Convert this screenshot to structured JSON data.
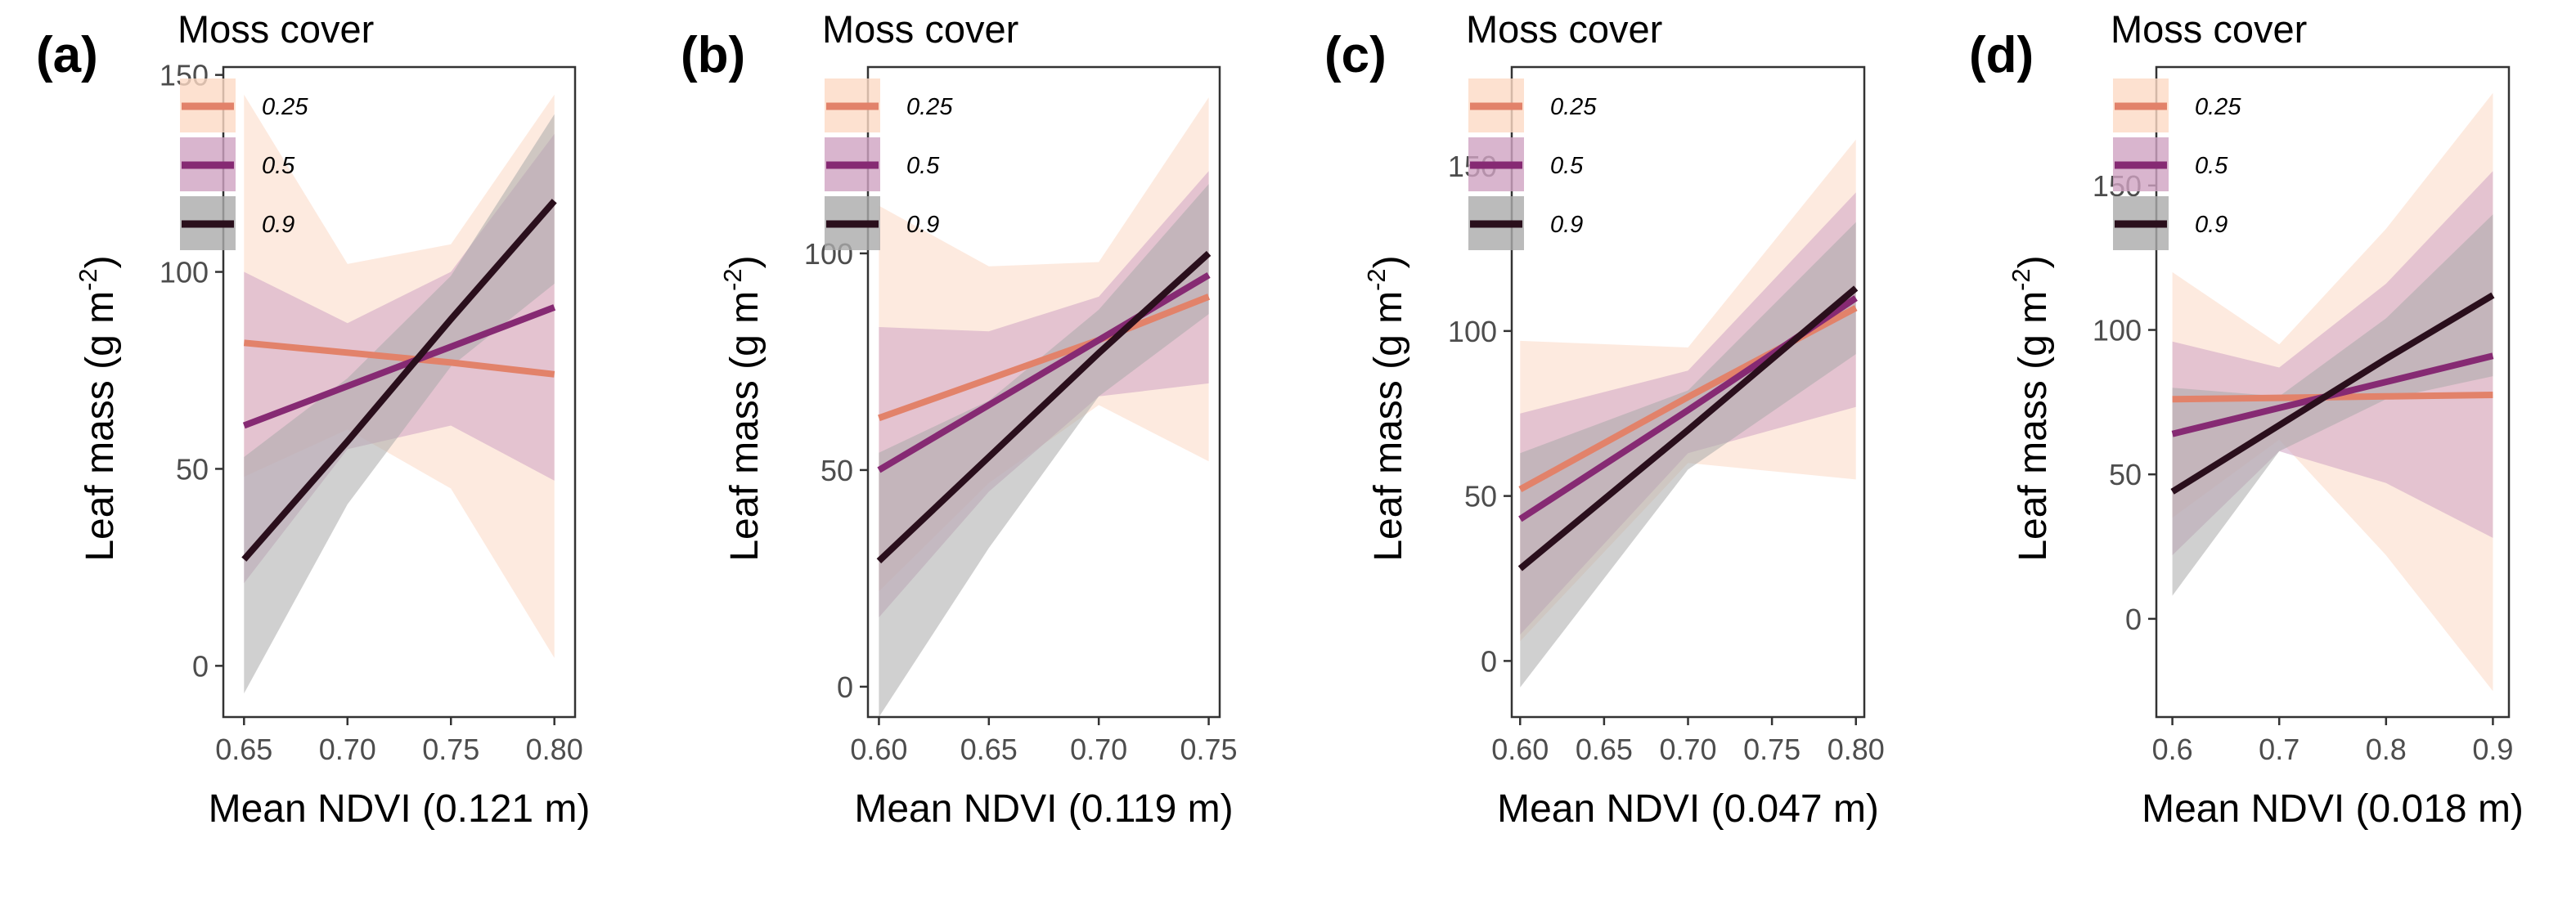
{
  "colors": {
    "0.25": {
      "line": "#e2826a",
      "ribbon": "#fcd9c4"
    },
    "0.5": {
      "line": "#862a73",
      "ribbon": "#cfa2c2"
    },
    "0.9": {
      "line": "#2a0f1c",
      "ribbon": "#aaaaaa"
    }
  },
  "chart_data": [
    {
      "type": "line",
      "panel_label": "(a)",
      "legend_title": "Moss cover",
      "legend_entries": [
        "0.25",
        "0.5",
        "0.9"
      ],
      "xlabel": "Mean NDVI (0.121 m)",
      "ylabel": "Leaf mass (g m",
      "ylabel_sup": "-2",
      "ylabel_close": ")",
      "xlim": [
        0.64,
        0.81
      ],
      "ylim": [
        -13,
        152
      ],
      "x_ticks": [
        0.65,
        0.7,
        0.75,
        0.8
      ],
      "x_tick_labels": [
        "0.65",
        "0.70",
        "0.75",
        "0.80"
      ],
      "y_ticks": [
        0,
        50,
        100,
        150
      ],
      "y_tick_labels": [
        "0",
        "50",
        "100",
        "150"
      ],
      "x": [
        0.65,
        0.7,
        0.75,
        0.8
      ],
      "series": [
        {
          "name": "0.25",
          "values": [
            82,
            79.5,
            77,
            74
          ],
          "lower": [
            48,
            60,
            45,
            2
          ],
          "upper": [
            145,
            102,
            107,
            145
          ]
        },
        {
          "name": "0.5",
          "values": [
            61,
            71,
            81,
            91
          ],
          "lower": [
            21,
            55,
            61,
            47
          ],
          "upper": [
            100,
            87,
            100,
            135
          ]
        },
        {
          "name": "0.9",
          "values": [
            27,
            57,
            88,
            118
          ],
          "lower": [
            -7,
            41,
            76,
            97
          ],
          "upper": [
            53,
            73,
            99,
            140
          ]
        }
      ]
    },
    {
      "type": "line",
      "panel_label": "(b)",
      "legend_title": "Moss cover",
      "legend_entries": [
        "0.25",
        "0.5",
        "0.9"
      ],
      "xlabel": "Mean NDVI (0.119 m)",
      "ylabel": "Leaf mass (g m",
      "ylabel_sup": "-2",
      "ylabel_close": ")",
      "xlim": [
        0.595,
        0.755
      ],
      "ylim": [
        -7,
        143
      ],
      "x_ticks": [
        0.6,
        0.65,
        0.7,
        0.75
      ],
      "x_tick_labels": [
        "0.60",
        "0.65",
        "0.70",
        "0.75"
      ],
      "y_ticks": [
        0,
        50,
        100
      ],
      "y_tick_labels": [
        "0",
        "50",
        "100"
      ],
      "x": [
        0.6,
        0.65,
        0.7,
        0.75
      ],
      "series": [
        {
          "name": "0.25",
          "values": [
            62,
            71,
            80,
            90
          ],
          "lower": [
            22,
            47,
            65,
            52
          ],
          "upper": [
            111,
            97,
            98,
            136
          ]
        },
        {
          "name": "0.5",
          "values": [
            50,
            65,
            80,
            95
          ],
          "lower": [
            16,
            45,
            67,
            70
          ],
          "upper": [
            83,
            82,
            90,
            119
          ]
        },
        {
          "name": "0.9",
          "values": [
            29,
            53,
            77,
            100
          ],
          "lower": [
            -7,
            32,
            67,
            86
          ],
          "upper": [
            54,
            66,
            87,
            116
          ]
        }
      ]
    },
    {
      "type": "line",
      "panel_label": "(c)",
      "legend_title": "Moss cover",
      "legend_entries": [
        "0.25",
        "0.5",
        "0.9"
      ],
      "xlabel": "Mean NDVI (0.047 m)",
      "ylabel": "Leaf mass (g m",
      "ylabel_sup": "-2",
      "ylabel_close": ")",
      "xlim": [
        0.595,
        0.805
      ],
      "ylim": [
        -17,
        180
      ],
      "x_ticks": [
        0.6,
        0.65,
        0.7,
        0.75,
        0.8
      ],
      "x_tick_labels": [
        "0.60",
        "0.65",
        "0.70",
        "0.75",
        "0.80"
      ],
      "y_ticks": [
        0,
        50,
        100,
        150
      ],
      "y_tick_labels": [
        "0",
        "50",
        "100",
        "150"
      ],
      "x": [
        0.6,
        0.7,
        0.8
      ],
      "series": [
        {
          "name": "0.25",
          "values": [
            52,
            80,
            107
          ],
          "lower": [
            6,
            60,
            55
          ],
          "upper": [
            97,
            95,
            158
          ]
        },
        {
          "name": "0.5",
          "values": [
            43,
            76,
            110
          ],
          "lower": [
            8,
            63,
            77
          ],
          "upper": [
            75,
            88,
            142
          ]
        },
        {
          "name": "0.9",
          "values": [
            28,
            70,
            113
          ],
          "lower": [
            -8,
            58,
            93
          ],
          "upper": [
            63,
            82,
            133
          ]
        }
      ]
    },
    {
      "type": "line",
      "panel_label": "(d)",
      "legend_title": "Moss cover",
      "legend_entries": [
        "0.25",
        "0.5",
        "0.9"
      ],
      "xlabel": "Mean NDVI (0.018 m)",
      "ylabel": "Leaf mass (g m",
      "ylabel_sup": "-2",
      "ylabel_close": ")",
      "xlim": [
        0.585,
        0.915
      ],
      "ylim": [
        -34,
        191
      ],
      "x_ticks": [
        0.6,
        0.7,
        0.8,
        0.9
      ],
      "x_tick_labels": [
        "0.6",
        "0.7",
        "0.8",
        "0.9"
      ],
      "y_ticks": [
        0,
        50,
        100,
        150
      ],
      "y_tick_labels": [
        "0",
        "50",
        "100",
        "150"
      ],
      "x": [
        0.6,
        0.7,
        0.8,
        0.9
      ],
      "series": [
        {
          "name": "0.25",
          "values": [
            76,
            76.5,
            77,
            77.5
          ],
          "lower": [
            35,
            62,
            22,
            -25
          ],
          "upper": [
            120,
            95,
            135,
            182
          ]
        },
        {
          "name": "0.5",
          "values": [
            64,
            73,
            82,
            91
          ],
          "lower": [
            22,
            58,
            47,
            28
          ],
          "upper": [
            96,
            87,
            116,
            155
          ]
        },
        {
          "name": "0.9",
          "values": [
            44,
            67,
            90,
            112
          ],
          "lower": [
            8,
            58,
            76,
            84
          ],
          "upper": [
            80,
            77,
            104,
            140
          ]
        }
      ]
    }
  ]
}
